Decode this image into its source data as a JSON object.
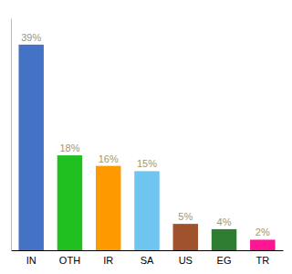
{
  "chart_data": {
    "type": "bar",
    "categories": [
      "IN",
      "OTH",
      "IR",
      "SA",
      "US",
      "EG",
      "TR"
    ],
    "values": [
      39,
      18,
      16,
      15,
      5,
      4,
      2
    ],
    "value_labels": [
      "39%",
      "18%",
      "16%",
      "15%",
      "5%",
      "4%",
      "2%"
    ],
    "colors": [
      "#4472c4",
      "#21c021",
      "#ff9900",
      "#6ec6f0",
      "#a0522d",
      "#2e7d32",
      "#ff1493"
    ],
    "ylim": [
      0,
      44
    ],
    "data_labels": true,
    "tick_labels": "x",
    "grid": false
  }
}
